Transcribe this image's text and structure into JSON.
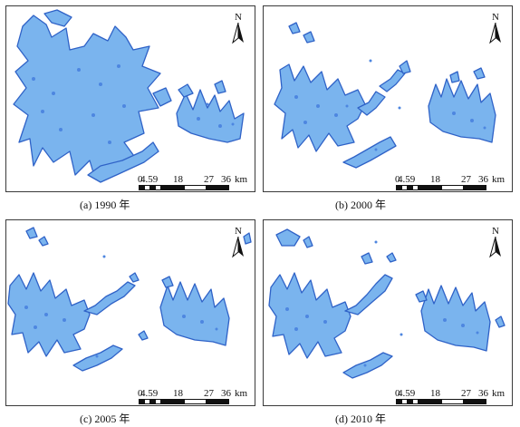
{
  "panels": [
    {
      "caption": "(a) 1990 年",
      "year": 1990
    },
    {
      "caption": "(b) 2000 年",
      "year": 2000
    },
    {
      "caption": "(c) 2005 年",
      "year": 2005
    },
    {
      "caption": "(d) 2010 年",
      "year": 2010
    }
  ],
  "north_arrow": {
    "label": "N"
  },
  "scale_bar": {
    "ticks": [
      "0",
      "4.59",
      "18",
      "27",
      "36"
    ],
    "unit": "km"
  },
  "colors": {
    "glacier_fill": "#7ab4ee",
    "glacier_edge": "#2f62c7",
    "frame": "#3a3a3a"
  }
}
